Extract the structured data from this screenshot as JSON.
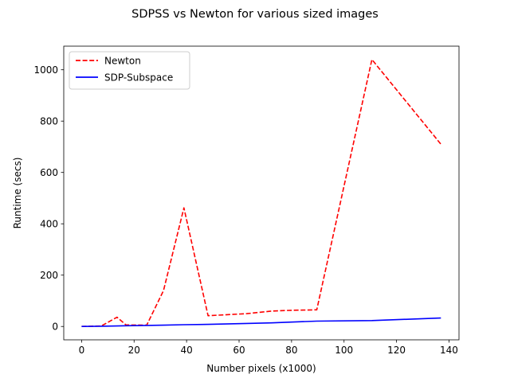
{
  "chart_data": {
    "type": "line",
    "title": "SDPSS vs Newton for various sized images",
    "xlabel": "Number pixels (x1000)",
    "ylabel": "Runtime (secs)",
    "xlim": [
      -6.8,
      143.8
    ],
    "ylim": [
      -52,
      1092
    ],
    "xticks": [
      0,
      20,
      40,
      60,
      80,
      100,
      120,
      140
    ],
    "yticks": [
      0,
      200,
      400,
      600,
      800,
      1000
    ],
    "grid": false,
    "legend_position": "upper left",
    "series": [
      {
        "name": "Newton",
        "color": "#ff0000",
        "style": "dashed",
        "x": [
          0.0,
          7.5,
          13.5,
          16.9,
          24.8,
          31.2,
          39.0,
          48.2,
          63.0,
          72.4,
          80.0,
          89.6,
          110.6,
          136.9
        ],
        "y": [
          0,
          2,
          36,
          6,
          5,
          140,
          462,
          42,
          50,
          60,
          63,
          65,
          1040,
          710
        ]
      },
      {
        "name": "SDP-Subspace",
        "color": "#0000ff",
        "style": "solid",
        "x": [
          0.0,
          7.5,
          13.5,
          16.9,
          24.8,
          31.2,
          39.0,
          48.2,
          63.0,
          72.4,
          80.0,
          89.6,
          110.6,
          136.9
        ],
        "y": [
          0,
          1,
          2,
          3,
          4,
          5,
          7,
          8,
          12,
          14,
          17,
          21,
          23,
          33
        ]
      }
    ]
  }
}
